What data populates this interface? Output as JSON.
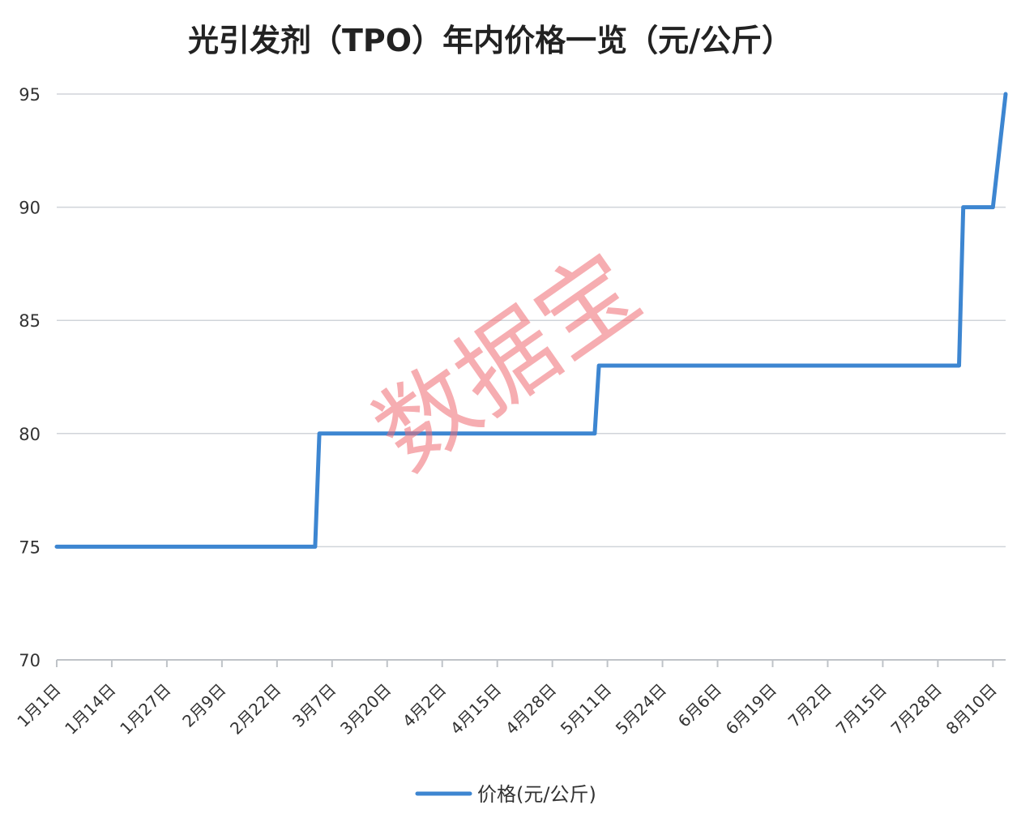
{
  "chart_data": {
    "type": "line",
    "title": "光引发剂（TPO）年内价格一览（元/公斤）",
    "xlabel": "",
    "ylabel": "",
    "ylim": [
      70,
      95
    ],
    "yticks": [
      70,
      75,
      80,
      85,
      90,
      95
    ],
    "xlim": [
      "1月1日",
      "8月13日"
    ],
    "x_tick_labels": [
      "1月1日",
      "1月14日",
      "1月27日",
      "2月9日",
      "2月22日",
      "3月7日",
      "3月20日",
      "4月2日",
      "4月15日",
      "4月28日",
      "5月11日",
      "5月24日",
      "6月6日",
      "6月19日",
      "7月2日",
      "7月15日",
      "7月28日",
      "8月10日"
    ],
    "grid": true,
    "legend_position": "bottom",
    "series": [
      {
        "name": "价格(元/公斤)",
        "color": "#3d86d1",
        "points": [
          {
            "x": "1月1日",
            "y": 75
          },
          {
            "x": "3月3日",
            "y": 75
          },
          {
            "x": "3月4日",
            "y": 80
          },
          {
            "x": "5月8日",
            "y": 80
          },
          {
            "x": "5月9日",
            "y": 83
          },
          {
            "x": "8月2日",
            "y": 83
          },
          {
            "x": "8月3日",
            "y": 90
          },
          {
            "x": "8月10日",
            "y": 90
          },
          {
            "x": "8月13日",
            "y": 95
          }
        ]
      }
    ]
  },
  "watermark": "数据宝"
}
